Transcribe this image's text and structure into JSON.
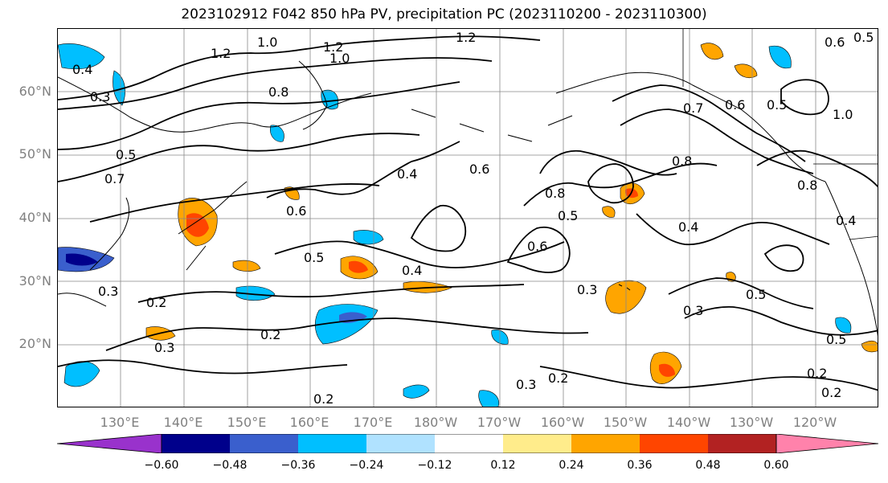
{
  "title": "2023102912 F042 850 hPa PV, precipitation PC (2023110200 - 2023110300)",
  "lat_labels": [
    "60°N",
    "50°N",
    "40°N",
    "30°N",
    "20°N"
  ],
  "lon_labels": [
    "130°E",
    "140°E",
    "150°E",
    "160°E",
    "170°E",
    "180°W",
    "170°W",
    "160°W",
    "150°W",
    "140°W",
    "130°W",
    "120°W"
  ],
  "contour_labels": [
    "1.2",
    "1.0",
    "1.2",
    "1.0",
    "1.2",
    "0.4",
    "0.3",
    "0.8",
    "0.5",
    "0.7",
    "0.6",
    "0.3",
    "0.2",
    "0.3",
    "0.2",
    "0.2",
    "0.6",
    "0.5",
    "0.4",
    "0.4",
    "0.6",
    "0.5",
    "0.3",
    "0.3",
    "0.2",
    "0.8",
    "0.6",
    "0.5",
    "0.7",
    "0.8",
    "0.4",
    "0.3",
    "0.5",
    "0.5",
    "1.0",
    "0.8",
    "0.4",
    "0.2",
    "0.2",
    "0.6",
    "0.5"
  ],
  "colorbar": {
    "ticks": [
      "−0.60",
      "−0.48",
      "−0.36",
      "−0.24",
      "−0.12",
      "0.12",
      "0.24",
      "0.36",
      "0.48",
      "0.60"
    ],
    "colors": [
      "#9932cc",
      "#00008b",
      "#3a5fcd",
      "#00bfff",
      "#b0e2ff",
      "#ffffff",
      "#ffec8b",
      "#ffa500",
      "#ff4500",
      "#b22222",
      "#ff82ab"
    ]
  },
  "colors": {
    "contour": "#000000",
    "grid": "#888888",
    "coast": "#000000"
  }
}
